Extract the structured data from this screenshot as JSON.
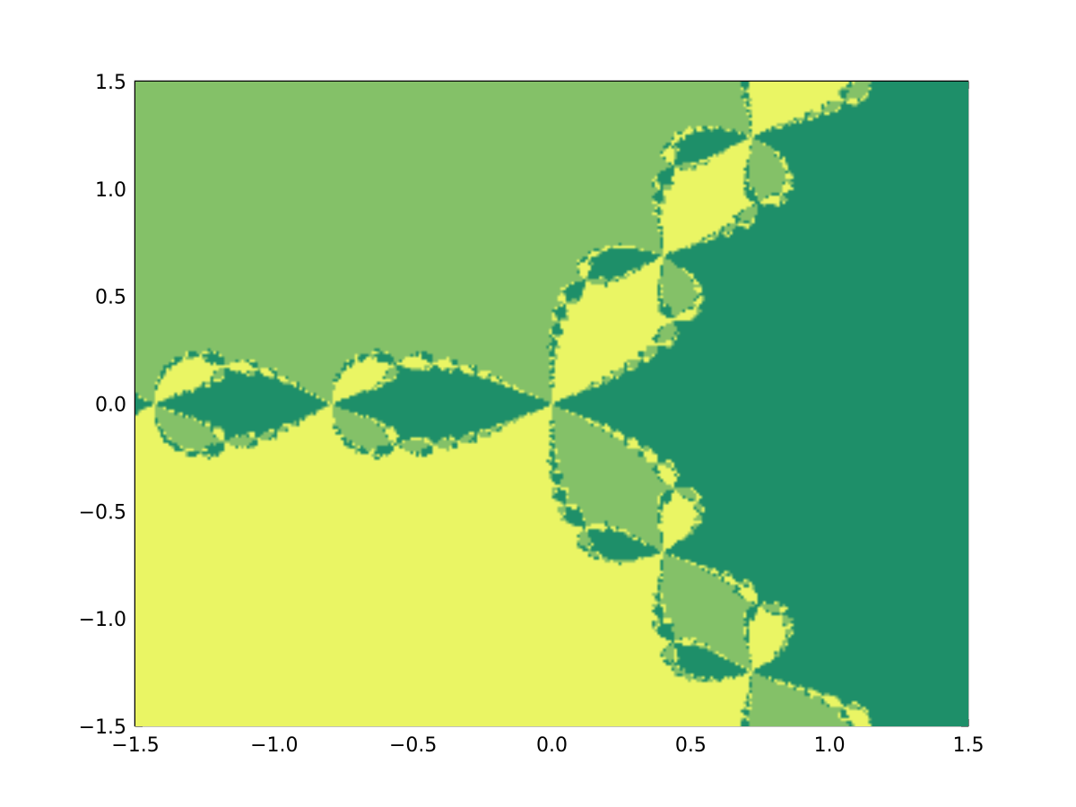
{
  "chart_data": {
    "type": "heatmap",
    "title": "",
    "xlabel": "",
    "ylabel": "",
    "xlim": [
      -1.5,
      1.5
    ],
    "ylim": [
      -1.5,
      1.5
    ],
    "x_ticks": [
      {
        "value": -1.5,
        "label": "−1.5"
      },
      {
        "value": -1.0,
        "label": "−1.0"
      },
      {
        "value": -0.5,
        "label": "−0.5"
      },
      {
        "value": 0.0,
        "label": "0.0"
      },
      {
        "value": 0.5,
        "label": "0.5"
      },
      {
        "value": 1.0,
        "label": "1.0"
      },
      {
        "value": 1.5,
        "label": "1.5"
      }
    ],
    "y_ticks": [
      {
        "value": 1.5,
        "label": "1.5"
      },
      {
        "value": 1.0,
        "label": "1.0"
      },
      {
        "value": 0.5,
        "label": "0.5"
      },
      {
        "value": 0.0,
        "label": "0.0"
      },
      {
        "value": -0.5,
        "label": "−0.5"
      },
      {
        "value": -1.0,
        "label": "−1.0"
      },
      {
        "value": -1.5,
        "label": "−1.5"
      }
    ],
    "grid": false,
    "legend": "none",
    "basins": [
      {
        "root": [
          1.0,
          0.0
        ],
        "color": "#1e8f69"
      },
      {
        "root": [
          -0.5,
          0.866
        ],
        "color": "#84c168"
      },
      {
        "root": [
          -0.5,
          -0.866
        ],
        "color": "#eaf564"
      }
    ],
    "boundary_color": "#f2f66a"
  }
}
